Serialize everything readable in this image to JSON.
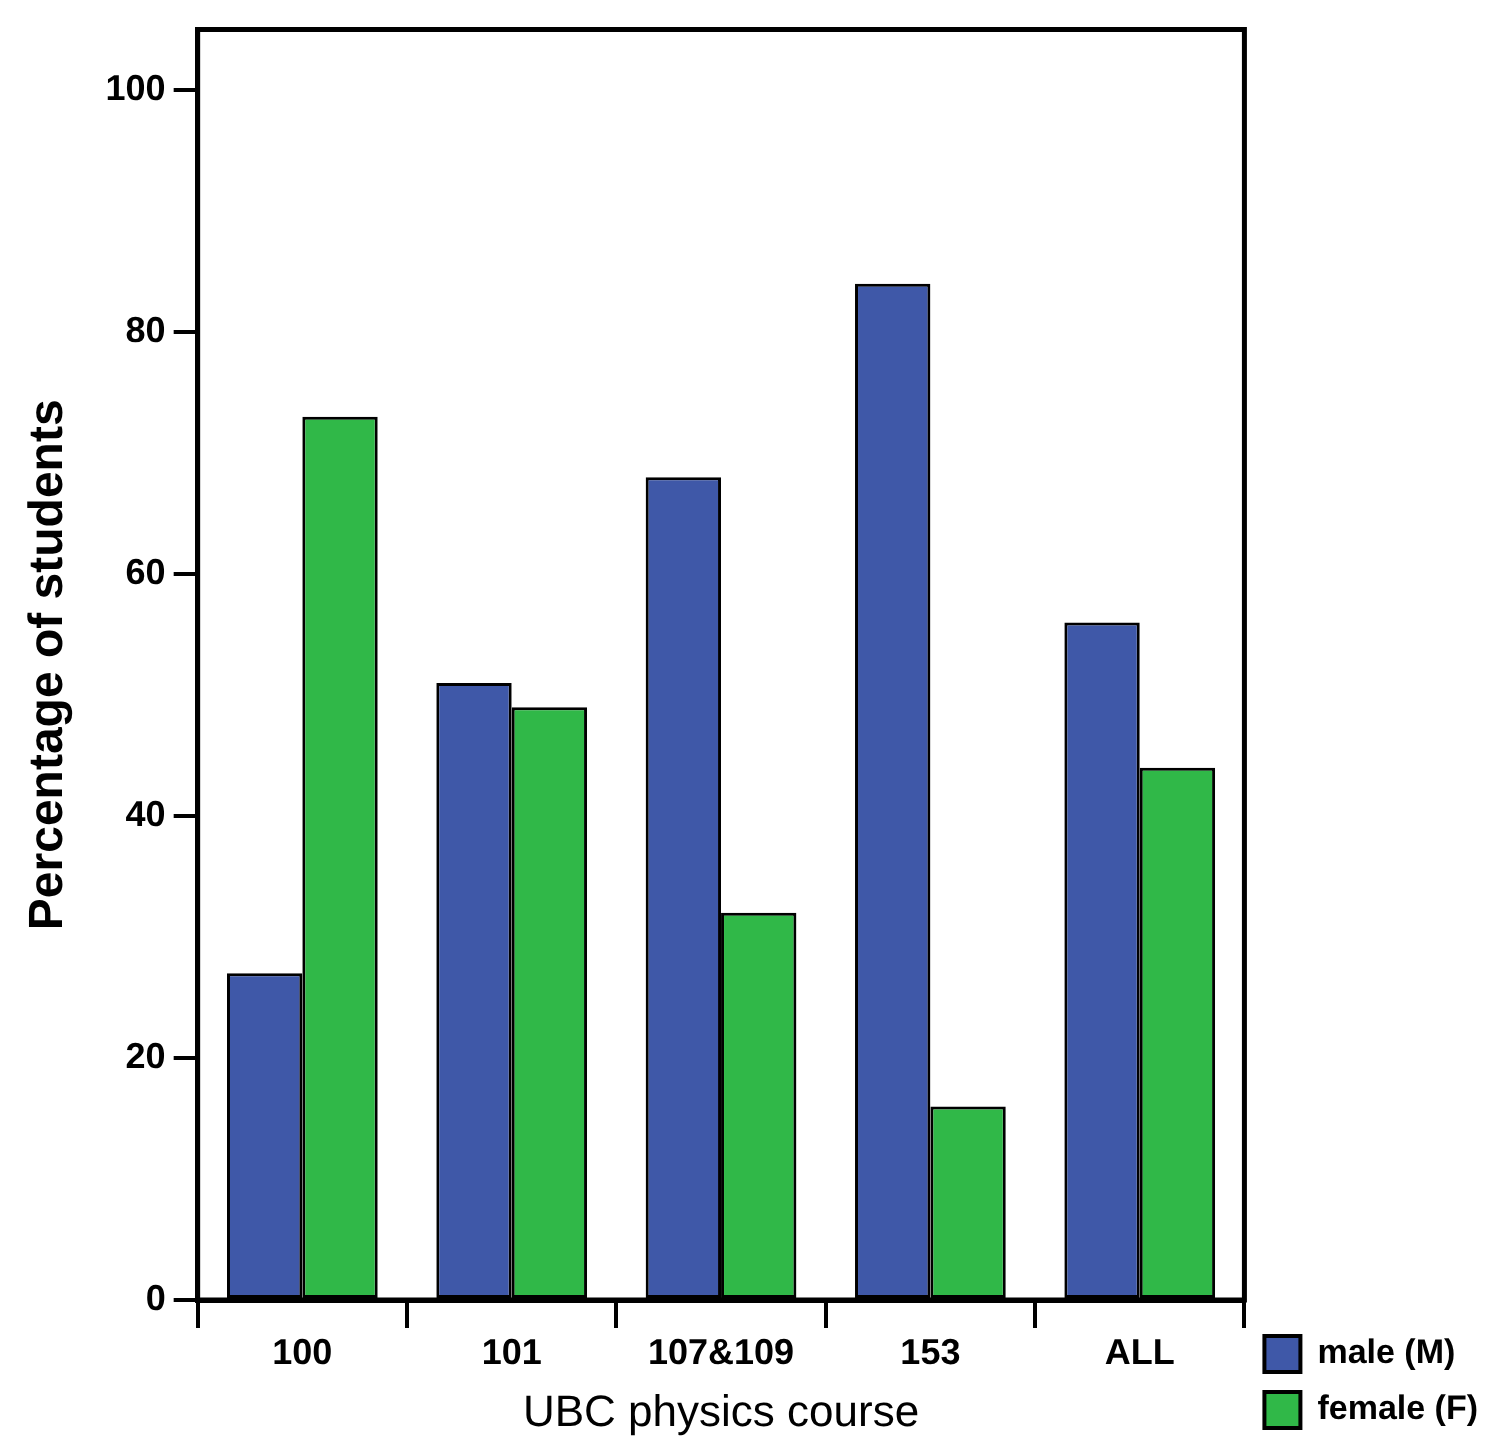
{
  "chart_data": {
    "type": "bar",
    "xlabel": "UBC physics course",
    "ylabel": "Percentage of students",
    "categories": [
      "100",
      "101",
      "107&109",
      "153",
      "ALL"
    ],
    "series": [
      {
        "name": "male (M)",
        "color": "#3f58a8",
        "values": [
          27,
          51,
          68,
          84,
          56
        ]
      },
      {
        "name": "female (F)",
        "color": "#30b848",
        "values": [
          73,
          49,
          32,
          16,
          44
        ]
      }
    ],
    "ylim": [
      0,
      105
    ],
    "yticks": [
      0,
      20,
      40,
      60,
      80,
      100
    ],
    "grid": false,
    "legend": "bottom right"
  }
}
